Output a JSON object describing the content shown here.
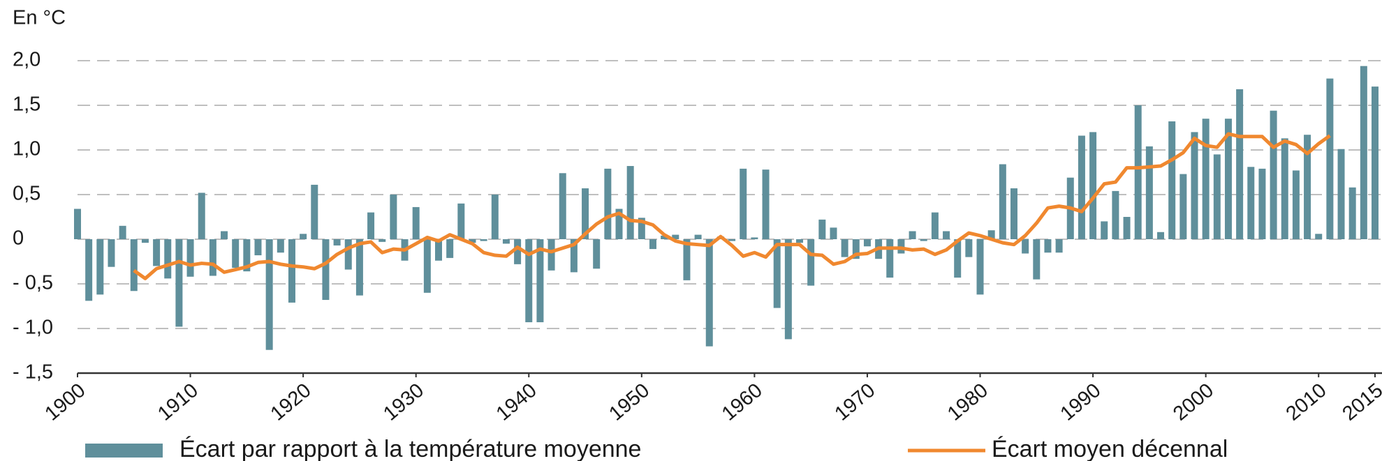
{
  "chart_data": {
    "type": "bar-line",
    "y_label": "En °C",
    "x": [
      1900,
      1901,
      1902,
      1903,
      1904,
      1905,
      1906,
      1907,
      1908,
      1909,
      1910,
      1911,
      1912,
      1913,
      1914,
      1915,
      1916,
      1917,
      1918,
      1919,
      1920,
      1921,
      1922,
      1923,
      1924,
      1925,
      1926,
      1927,
      1928,
      1929,
      1930,
      1931,
      1932,
      1933,
      1934,
      1935,
      1936,
      1937,
      1938,
      1939,
      1940,
      1941,
      1942,
      1943,
      1944,
      1945,
      1946,
      1947,
      1948,
      1949,
      1950,
      1951,
      1952,
      1953,
      1954,
      1955,
      1956,
      1957,
      1958,
      1959,
      1960,
      1961,
      1962,
      1963,
      1964,
      1965,
      1966,
      1967,
      1968,
      1969,
      1970,
      1971,
      1972,
      1973,
      1974,
      1975,
      1976,
      1977,
      1978,
      1979,
      1980,
      1981,
      1982,
      1983,
      1984,
      1985,
      1986,
      1987,
      1988,
      1989,
      1990,
      1991,
      1992,
      1993,
      1994,
      1995,
      1996,
      1997,
      1998,
      1999,
      2000,
      2001,
      2002,
      2003,
      2004,
      2005,
      2006,
      2007,
      2008,
      2009,
      2010,
      2011,
      2012,
      2013,
      2014,
      2015
    ],
    "series": [
      {
        "name": "Écart par rapport à la température moyenne",
        "type": "bar",
        "color": "#5f8f9b",
        "values": [
          0.34,
          -0.69,
          -0.62,
          -0.31,
          0.15,
          -0.58,
          -0.04,
          -0.3,
          -0.44,
          -0.98,
          -0.42,
          0.52,
          -0.41,
          0.09,
          -0.32,
          -0.36,
          -0.18,
          -1.24,
          -0.15,
          -0.71,
          0.06,
          0.61,
          -0.68,
          -0.07,
          -0.34,
          -0.63,
          0.3,
          -0.03,
          0.5,
          -0.24,
          0.36,
          -0.6,
          -0.24,
          -0.21,
          0.4,
          -0.04,
          -0.02,
          0.5,
          -0.05,
          -0.28,
          -0.93,
          -0.93,
          -0.35,
          0.74,
          -0.37,
          0.57,
          -0.33,
          0.79,
          0.34,
          0.82,
          0.24,
          -0.11,
          0.04,
          0.05,
          -0.46,
          0.05,
          -1.2,
          0.03,
          -0.02,
          0.79,
          0.02,
          0.78,
          -0.77,
          -1.12,
          -0.04,
          -0.52,
          0.22,
          0.13,
          -0.2,
          -0.22,
          -0.08,
          -0.22,
          -0.43,
          -0.16,
          0.09,
          -0.02,
          0.3,
          0.09,
          -0.43,
          -0.2,
          -0.62,
          0.1,
          0.84,
          0.57,
          -0.16,
          -0.45,
          -0.15,
          -0.15,
          0.69,
          1.16,
          1.2,
          0.2,
          0.54,
          0.25,
          1.5,
          1.04,
          0.08,
          1.32,
          0.73,
          1.2,
          1.35,
          0.95,
          1.35,
          1.68,
          0.81,
          0.79,
          1.44,
          1.13,
          0.77,
          1.17,
          0.06,
          1.8,
          1.01,
          0.58,
          1.94,
          1.71
        ]
      },
      {
        "name": "Écart moyen décennal",
        "type": "line",
        "color": "#f0882f",
        "values": [
          null,
          null,
          null,
          null,
          null,
          -0.35,
          -0.44,
          -0.33,
          -0.29,
          -0.25,
          -0.29,
          -0.27,
          -0.28,
          -0.37,
          -0.34,
          -0.31,
          -0.26,
          -0.25,
          -0.28,
          -0.3,
          -0.31,
          -0.33,
          -0.27,
          -0.17,
          -0.1,
          -0.05,
          -0.03,
          -0.15,
          -0.11,
          -0.12,
          -0.05,
          0.02,
          -0.02,
          0.05,
          0.0,
          -0.05,
          -0.15,
          -0.18,
          -0.19,
          -0.09,
          -0.17,
          -0.11,
          -0.14,
          -0.1,
          -0.06,
          0.06,
          0.17,
          0.25,
          0.29,
          0.21,
          0.2,
          0.16,
          0.05,
          -0.02,
          -0.05,
          -0.06,
          -0.07,
          0.03,
          -0.07,
          -0.19,
          -0.15,
          -0.2,
          -0.06,
          -0.06,
          -0.06,
          -0.17,
          -0.18,
          -0.28,
          -0.25,
          -0.17,
          -0.16,
          -0.1,
          -0.1,
          -0.1,
          -0.12,
          -0.11,
          -0.17,
          -0.12,
          -0.02,
          0.07,
          0.04,
          0.0,
          -0.04,
          -0.06,
          0.04,
          0.18,
          0.35,
          0.37,
          0.35,
          0.31,
          0.46,
          0.62,
          0.64,
          0.8,
          0.8,
          0.81,
          0.82,
          0.89,
          0.97,
          1.13,
          1.05,
          1.03,
          1.18,
          1.15,
          1.15,
          1.15,
          1.03,
          1.1,
          1.06,
          0.96,
          1.07,
          1.16,
          null,
          null,
          null,
          null
        ]
      }
    ],
    "xlim": [
      1900,
      2015
    ],
    "xticks": [
      1900,
      1910,
      1920,
      1930,
      1940,
      1950,
      1960,
      1970,
      1980,
      1990,
      2000,
      2010,
      2015
    ],
    "ylim": [
      -1.5,
      2
    ],
    "yticks": [
      {
        "value": -1.5,
        "label": "- 1,5"
      },
      {
        "value": -1,
        "label": "- 1,0"
      },
      {
        "value": -0.5,
        "label": "- 0,5"
      },
      0,
      {
        "value": 0.5,
        "label": "0,5"
      },
      {
        "value": 1,
        "label": "1,0"
      },
      {
        "value": 1.5,
        "label": "1,5"
      },
      {
        "value": 2,
        "label": "2,0"
      }
    ],
    "grid": true,
    "legend": "bottom"
  }
}
